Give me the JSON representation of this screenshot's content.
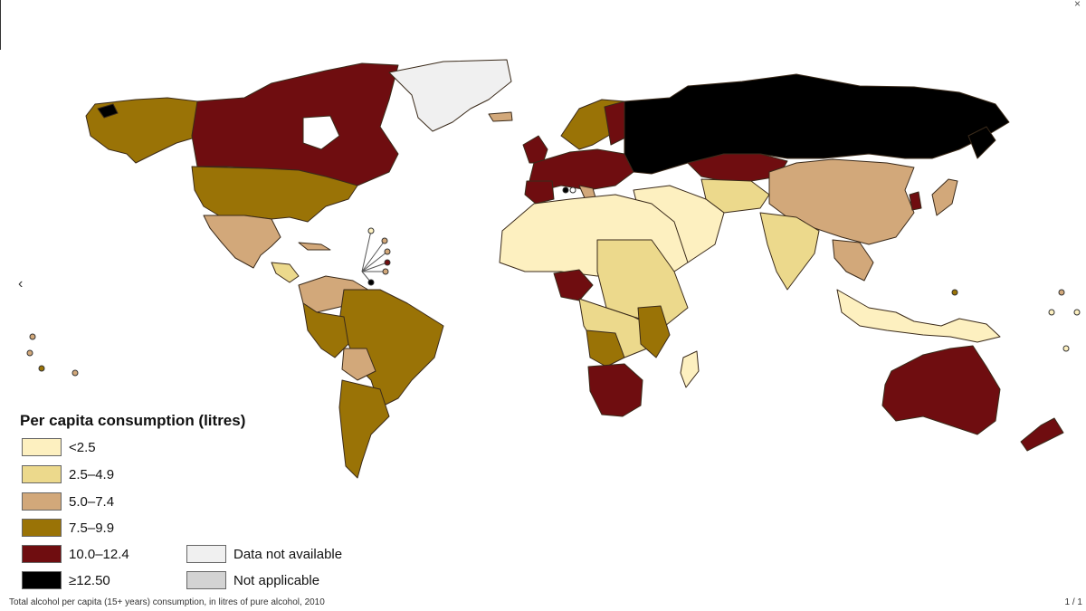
{
  "legend": {
    "title": "Per capita consumption (litres)",
    "items": [
      {
        "label": "<2.5",
        "color": "#fdf0c0"
      },
      {
        "label": "2.5–4.9",
        "color": "#ecd98c"
      },
      {
        "label": "5.0–7.4",
        "color": "#d2a87a"
      },
      {
        "label": "7.5–9.9",
        "color": "#9a7306"
      },
      {
        "label": "10.0–12.4",
        "color": "#6f0d10"
      },
      {
        "label": "≥12.50",
        "color": "#000000"
      },
      {
        "label": "Data not available",
        "color": "#f0f0f0"
      },
      {
        "label": "Not applicable",
        "color": "#d3d3d3"
      }
    ]
  },
  "caption": "Total alcohol per capita (15+ years) consumption, in litres of pure alcohol, 2010",
  "pager": "1 / 1",
  "controls": {
    "close": "×",
    "prev": "‹"
  }
}
